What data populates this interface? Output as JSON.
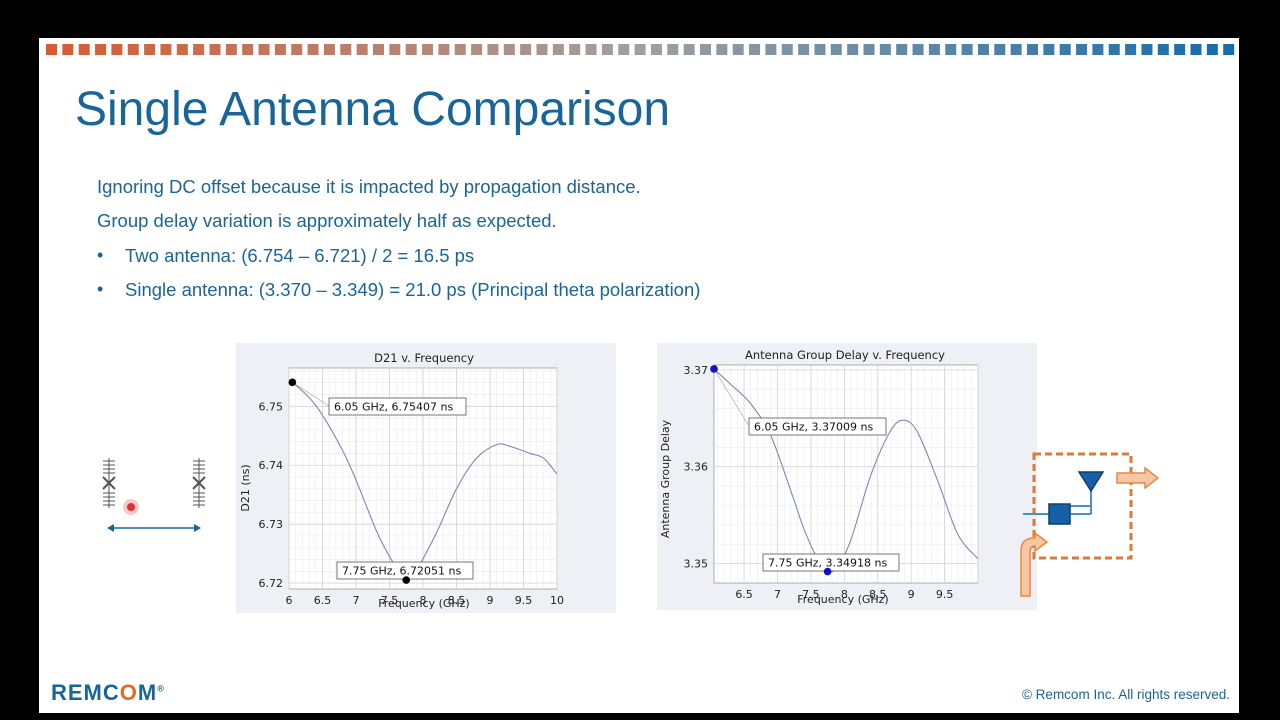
{
  "slide": {
    "title": "Single Antenna Comparison",
    "lines": [
      "Ignoring DC offset because it is impacted by propagation distance.",
      "Group delay variation is approximately half as expected."
    ],
    "bullets": [
      "Two antenna: (6.754 – 6.721) / 2 = 16.5 ps",
      "Single antenna: (3.370 – 3.349) = 21.0 ps (Principal theta polarization)"
    ],
    "footer": {
      "logo_pre": "REMC",
      "logo_o": "O",
      "logo_post": "M",
      "logo_mark": "®",
      "copyright": "© Remcom Inc. All rights reserved."
    }
  },
  "colors": {
    "accent_blue": "#1a6597",
    "accent_orange": "#e26b2a",
    "plot_line": "#7b88b8",
    "marker_black": "#000000",
    "marker_blue": "#1010c8"
  },
  "chart_data": [
    {
      "type": "line",
      "title": "D21 v. Frequency",
      "xlabel": "Frequency (GHz)",
      "ylabel": "D21 (ns)",
      "xlim": [
        6,
        10
      ],
      "ylim": [
        6.719,
        6.7565
      ],
      "xticks": [
        6,
        6.5,
        7,
        7.5,
        8,
        8.5,
        9,
        9.5,
        10
      ],
      "xtick_labels": [
        "6",
        "6.5",
        "7",
        "7.5",
        "8",
        "8.5",
        "9",
        "9.5",
        "10"
      ],
      "yticks": [
        6.72,
        6.73,
        6.74,
        6.75
      ],
      "ytick_labels": [
        "6.72",
        "6.73",
        "6.74",
        "6.75"
      ],
      "grid": true,
      "series": [
        {
          "x": [
            6.05,
            6.3,
            6.5,
            6.8,
            7.0,
            7.3,
            7.5,
            7.7,
            7.75,
            7.9,
            8.2,
            8.5,
            8.8,
            9.1,
            9.3,
            9.6,
            9.8,
            10.0
          ],
          "values": [
            6.7541,
            6.7515,
            6.7485,
            6.7425,
            6.7375,
            6.729,
            6.7245,
            6.7211,
            6.72051,
            6.7222,
            6.7285,
            6.736,
            6.7412,
            6.7435,
            6.7432,
            6.742,
            6.7412,
            6.7385
          ]
        }
      ],
      "annotations": [
        {
          "x": 6.05,
          "y": 6.75407,
          "text": "6.05 GHz, 6.75407 ns"
        },
        {
          "x": 7.75,
          "y": 6.72051,
          "text": "7.75 GHz, 6.72051 ns"
        }
      ]
    },
    {
      "type": "line",
      "title": "Antenna Group Delay v. Frequency",
      "xlabel": "Frequency (GHz)",
      "ylabel": "Antenna Group Delay",
      "xlim": [
        6.05,
        10.0
      ],
      "ylim": [
        3.348,
        3.3705
      ],
      "xticks": [
        6.5,
        7,
        7.5,
        8,
        8.5,
        9,
        9.5
      ],
      "xtick_labels": [
        "6.5",
        "7",
        "7.5",
        "8",
        "8.5",
        "9",
        "9.5"
      ],
      "yticks": [
        3.35,
        3.36,
        3.37
      ],
      "ytick_labels": [
        "3.35",
        "3.36",
        "3.37"
      ],
      "grid": true,
      "series": [
        {
          "x": [
            6.05,
            6.3,
            6.6,
            6.9,
            7.2,
            7.4,
            7.6,
            7.75,
            7.9,
            8.1,
            8.4,
            8.7,
            8.9,
            9.1,
            9.4,
            9.7,
            10.0
          ],
          "values": [
            3.37009,
            3.3685,
            3.3665,
            3.3632,
            3.3575,
            3.3535,
            3.3505,
            3.34918,
            3.3497,
            3.3525,
            3.3592,
            3.3638,
            3.3648,
            3.3635,
            3.3585,
            3.353,
            3.3505
          ]
        }
      ],
      "annotations": [
        {
          "x": 6.05,
          "y": 3.37009,
          "text": "6.05 GHz, 3.37009 ns"
        },
        {
          "x": 7.75,
          "y": 3.34918,
          "text": "7.75 GHz, 3.34918 ns"
        }
      ]
    }
  ]
}
